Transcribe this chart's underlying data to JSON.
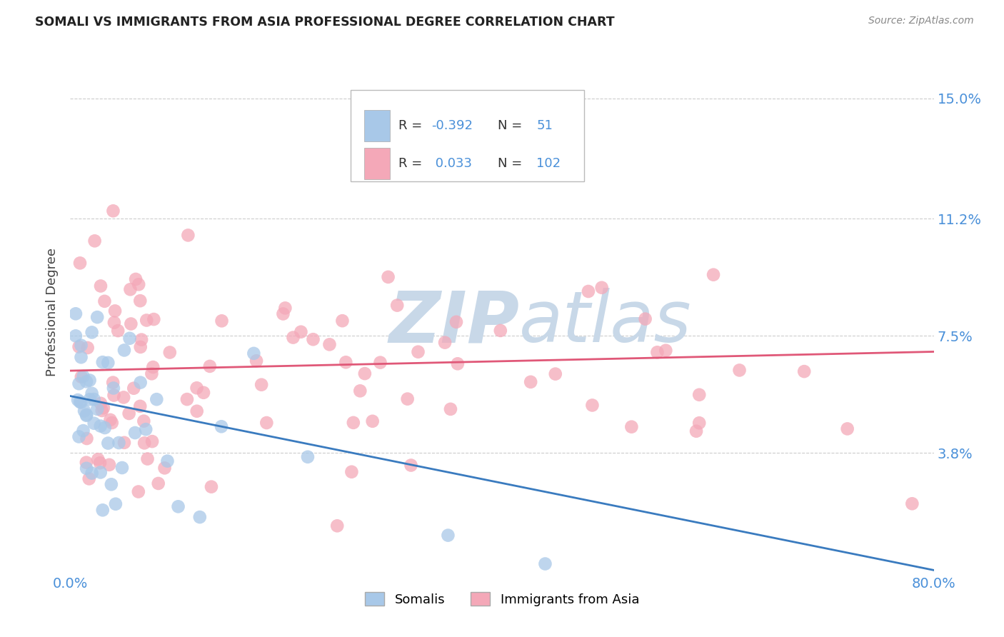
{
  "title": "SOMALI VS IMMIGRANTS FROM ASIA PROFESSIONAL DEGREE CORRELATION CHART",
  "source": "Source: ZipAtlas.com",
  "ylabel": "Professional Degree",
  "x_tick_labels": [
    "0.0%",
    "80.0%"
  ],
  "y_tick_labels": [
    "3.8%",
    "7.5%",
    "11.2%",
    "15.0%"
  ],
  "y_tick_values": [
    0.038,
    0.075,
    0.112,
    0.15
  ],
  "xlim": [
    0.0,
    0.8
  ],
  "ylim": [
    0.0,
    0.165
  ],
  "somali_R": -0.392,
  "somali_N": 51,
  "asia_R": 0.033,
  "asia_N": 102,
  "legend_label_1": "Somalis",
  "legend_label_2": "Immigrants from Asia",
  "somali_color": "#a8c8e8",
  "asia_color": "#f4a8b8",
  "somali_line_color": "#3a7bbf",
  "asia_line_color": "#e05878",
  "text_color": "#4a90d9",
  "dark_text": "#333333",
  "background_color": "#ffffff",
  "watermark_color": "#c8d8e8",
  "grid_color": "#cccccc",
  "legend_R_label": "R =",
  "legend_N_label": "N =",
  "somali_R_val": "-0.392",
  "asia_R_val": "0.033",
  "somali_N_val": "51",
  "asia_N_val": "102"
}
